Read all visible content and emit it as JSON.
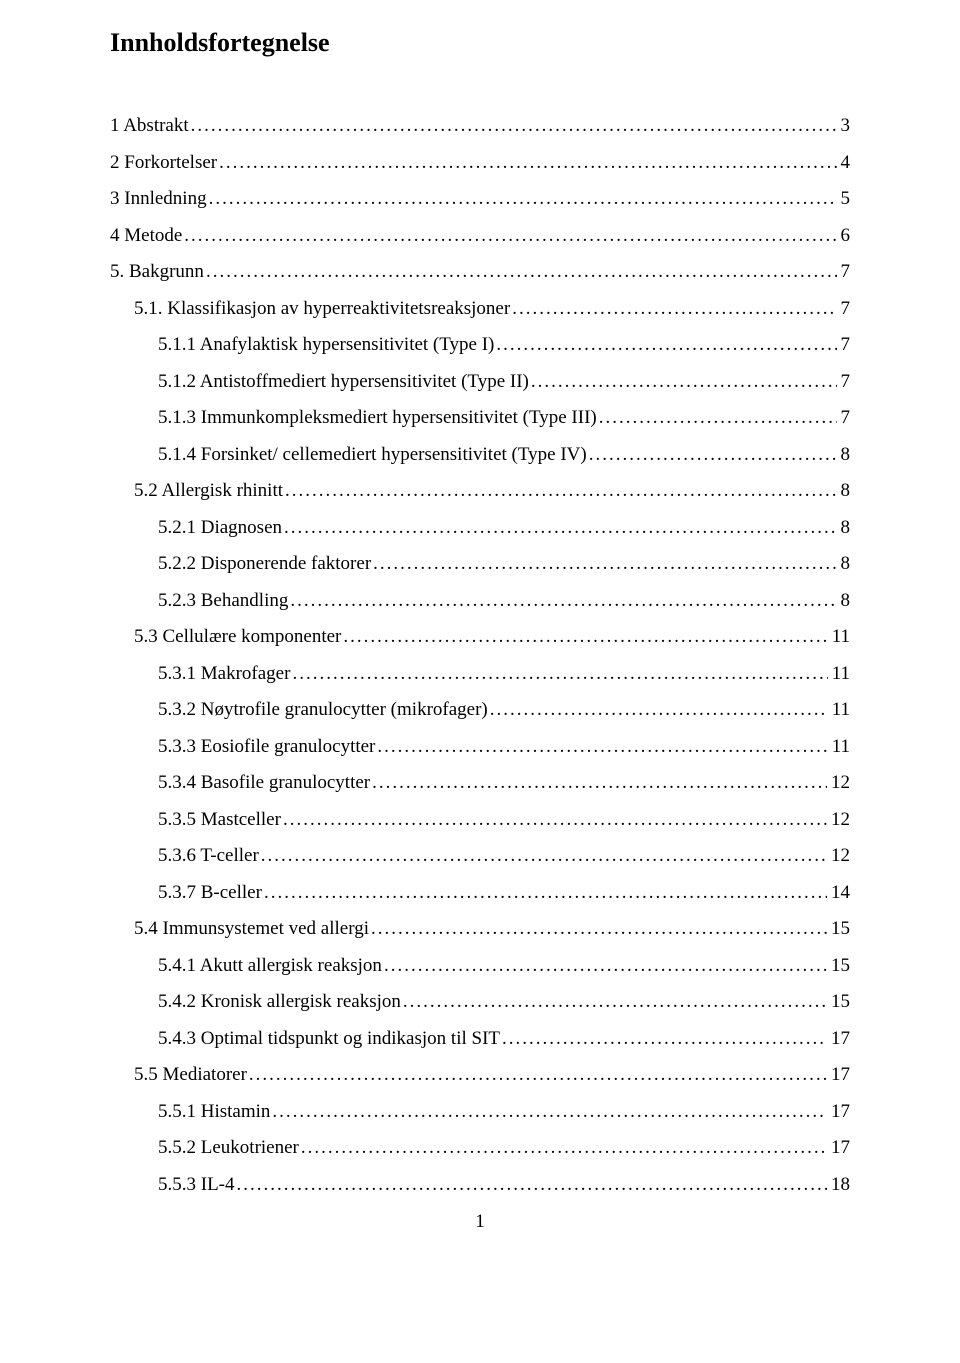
{
  "title": "Innholdsfortegnelse",
  "page_number": "1",
  "toc": [
    {
      "indent": 0,
      "label": "1 Abstrakt",
      "page": "3"
    },
    {
      "indent": 0,
      "label": "2 Forkortelser",
      "page": "4"
    },
    {
      "indent": 0,
      "label": "3 Innledning",
      "page": "5"
    },
    {
      "indent": 0,
      "label": "4 Metode",
      "page": "6"
    },
    {
      "indent": 0,
      "label": "5. Bakgrunn",
      "page": "7"
    },
    {
      "indent": 1,
      "label": "5.1. Klassifikasjon av hyperreaktivitetsreaksjoner",
      "page": "7"
    },
    {
      "indent": 2,
      "label": "5.1.1 Anafylaktisk hypersensitivitet (Type I)",
      "page": "7"
    },
    {
      "indent": 2,
      "label": "5.1.2 Antistoffmediert hypersensitivitet (Type II)",
      "page": "7"
    },
    {
      "indent": 2,
      "label": "5.1.3 Immunkompleksmediert hypersensitivitet (Type III)",
      "page": "7"
    },
    {
      "indent": 2,
      "label": "5.1.4 Forsinket/ cellemediert hypersensitivitet (Type IV)",
      "page": "8"
    },
    {
      "indent": 1,
      "label": "5.2 Allergisk rhinitt",
      "page": "8"
    },
    {
      "indent": 2,
      "label": "5.2.1 Diagnosen",
      "page": "8"
    },
    {
      "indent": 2,
      "label": "5.2.2 Disponerende faktorer",
      "page": "8"
    },
    {
      "indent": 2,
      "label": "5.2.3 Behandling",
      "page": "8"
    },
    {
      "indent": 1,
      "label": "5.3 Cellulære komponenter",
      "page": "11"
    },
    {
      "indent": 2,
      "label": "5.3.1 Makrofager",
      "page": "11"
    },
    {
      "indent": 2,
      "label": "5.3.2 Nøytrofile granulocytter (mikrofager)",
      "page": "11"
    },
    {
      "indent": 2,
      "label": "5.3.3 Eosiofile granulocytter",
      "page": "11"
    },
    {
      "indent": 2,
      "label": "5.3.4 Basofile granulocytter",
      "page": "12"
    },
    {
      "indent": 2,
      "label": "5.3.5 Mastceller",
      "page": "12"
    },
    {
      "indent": 2,
      "label": "5.3.6 T-celler",
      "page": "12"
    },
    {
      "indent": 2,
      "label": "5.3.7 B-celler",
      "page": "14"
    },
    {
      "indent": 1,
      "label": "5.4 Immunsystemet ved allergi",
      "page": "15"
    },
    {
      "indent": 2,
      "label": "5.4.1 Akutt allergisk reaksjon",
      "page": "15"
    },
    {
      "indent": 2,
      "label": "5.4.2 Kronisk allergisk reaksjon",
      "page": "15"
    },
    {
      "indent": 2,
      "label": "5.4.3 Optimal tidspunkt og indikasjon til SIT",
      "page": "17"
    },
    {
      "indent": 1,
      "label": "5.5 Mediatorer",
      "page": "17"
    },
    {
      "indent": 2,
      "label": "5.5.1 Histamin",
      "page": "17"
    },
    {
      "indent": 2,
      "label": "5.5.2 Leukotriener",
      "page": "17"
    },
    {
      "indent": 2,
      "label": "5.5.3 IL-4",
      "page": "18"
    }
  ]
}
